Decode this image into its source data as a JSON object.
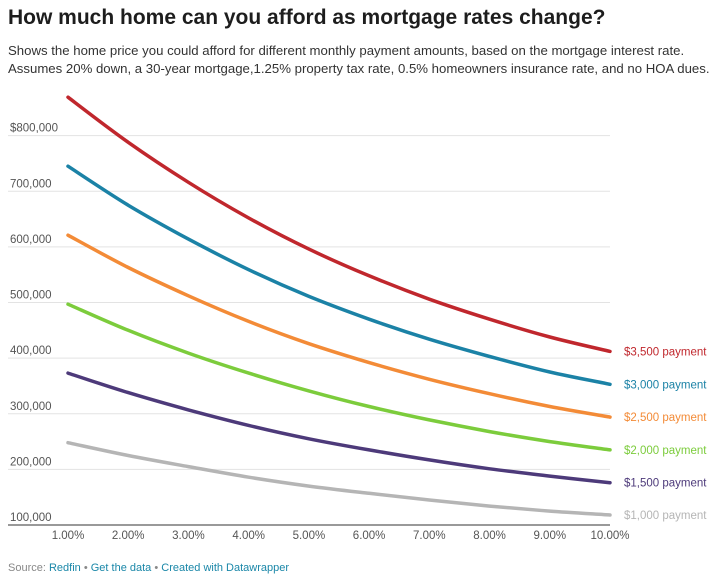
{
  "title": "How much home can you afford as mortgage rates change?",
  "subtitle": "Shows the home price you could afford for different monthly payment amounts, based on the mortgage interest rate. Assumes 20% down, a 30-year mortgage,1.25% property tax rate, 0.5% homeowners insurance rate, and no HOA dues.",
  "footer": {
    "source_label": "Source: ",
    "source": "Redfin",
    "sep1": " • ",
    "get_data": "Get the data",
    "sep2": " • ",
    "created": "Created with Datawrapper"
  },
  "chart_data": {
    "type": "line",
    "x": [
      1,
      2,
      3,
      4,
      5,
      6,
      7,
      8,
      9,
      10
    ],
    "xtick_labels": [
      "1.00%",
      "2.00%",
      "3.00%",
      "4.00%",
      "5.00%",
      "6.00%",
      "7.00%",
      "8.00%",
      "9.00%",
      "10.00%"
    ],
    "xlim": [
      1,
      10
    ],
    "ylim": [
      100000,
      900000
    ],
    "yticks": [
      100000,
      200000,
      300000,
      400000,
      500000,
      600000,
      700000,
      800000
    ],
    "ytick_labels": [
      "100,000",
      "200,000",
      "300,000",
      "400,000",
      "500,000",
      "600,000",
      "700,000",
      "$800,000"
    ],
    "grid": true,
    "series": [
      {
        "name": "$3,500 payment",
        "color": "#c0272d",
        "values": [
          869000,
          788000,
          716000,
          652000,
          596000,
          548000,
          506000,
          470000,
          438000,
          412000
        ]
      },
      {
        "name": "$3,000 payment",
        "color": "#1b82a6",
        "values": [
          745000,
          675000,
          614000,
          559000,
          511000,
          470000,
          434000,
          403000,
          375000,
          353000
        ]
      },
      {
        "name": "$2,500 payment",
        "color": "#f38b37",
        "values": [
          621000,
          563000,
          512000,
          466000,
          426000,
          392000,
          362000,
          336000,
          313000,
          294000
        ]
      },
      {
        "name": "$2,000 payment",
        "color": "#7ccc3c",
        "values": [
          497000,
          450000,
          409000,
          373000,
          341000,
          313000,
          289000,
          268000,
          250000,
          235000
        ]
      },
      {
        "name": "$1,500 payment",
        "color": "#4d3a7a",
        "values": [
          373000,
          338000,
          307000,
          279000,
          255000,
          235000,
          217000,
          201000,
          188000,
          176000
        ]
      },
      {
        "name": "$1,000 payment",
        "color": "#b5b5b5",
        "values": [
          248000,
          225000,
          205000,
          186000,
          170000,
          157000,
          145000,
          134000,
          125000,
          118000
        ]
      }
    ]
  }
}
